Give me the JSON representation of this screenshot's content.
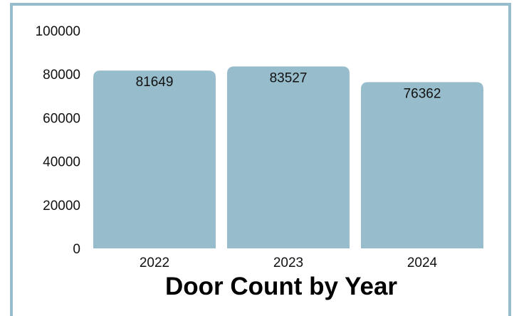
{
  "colors": {
    "bar": "#97bccb",
    "frame": "#97bccb",
    "background": "#ffffff",
    "text": "#111111"
  },
  "chart_data": {
    "type": "bar",
    "title": "Door Count by Year",
    "xlabel": "",
    "ylabel": "",
    "categories": [
      "2022",
      "2023",
      "2024"
    ],
    "values": [
      81649,
      83527,
      76362
    ],
    "data_labels": [
      "81649",
      "83527",
      "76362"
    ],
    "yticks": [
      "0",
      "20000",
      "40000",
      "60000",
      "80000",
      "100000"
    ],
    "ylim": [
      0,
      100000
    ],
    "grid": false,
    "legend": "none"
  }
}
